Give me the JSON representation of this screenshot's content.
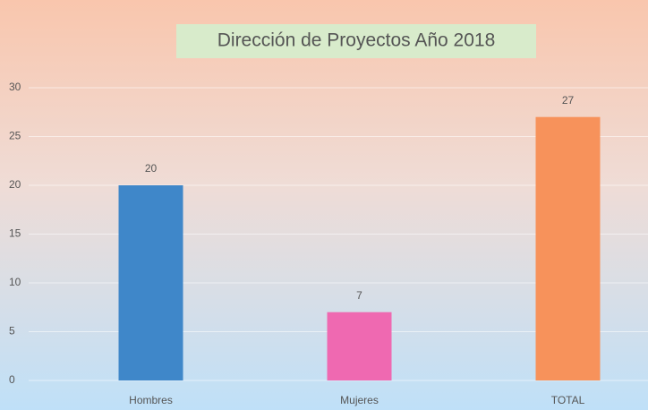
{
  "chart_data": {
    "type": "bar",
    "title": "Dirección de Proyectos Año 2018",
    "categories": [
      "Hombres",
      "Mujeres",
      "TOTAL"
    ],
    "values": [
      20,
      7,
      27
    ],
    "colors": [
      "#3f87c9",
      "#ef69b1",
      "#f7925b"
    ],
    "ylim": [
      0,
      30
    ],
    "yticks": [
      0,
      5,
      10,
      15,
      20,
      25,
      30
    ],
    "grid": true
  }
}
